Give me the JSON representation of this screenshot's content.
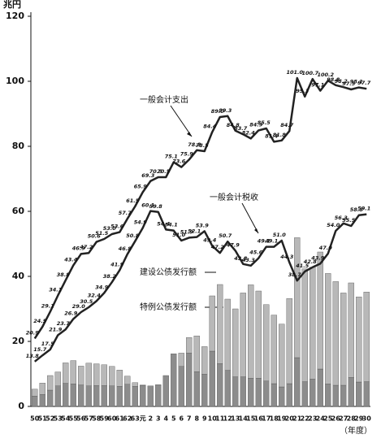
{
  "chart_data": {
    "type": "bar_line",
    "unit": "兆円",
    "x_label": "（年度）",
    "categories": [
      "50",
      "51",
      "52",
      "53",
      "54",
      "55",
      "56",
      "57",
      "58",
      "59",
      "60",
      "61",
      "62",
      "63",
      "元",
      "2",
      "3",
      "4",
      "5",
      "6",
      "7",
      "8",
      "9",
      "10",
      "11",
      "12",
      "13",
      "14",
      "15",
      "16",
      "17",
      "18",
      "19",
      "20",
      "21",
      "22",
      "23",
      "24",
      "25",
      "26",
      "27",
      "28",
      "29",
      "30"
    ],
    "series": [
      {
        "name": "一般会计支出",
        "kind": "line",
        "color": "#222222",
        "values": [
          20.9,
          24.5,
          29.1,
          34.1,
          38.8,
          43.4,
          46.9,
          47.2,
          50.6,
          51.5,
          53.0,
          53.6,
          57.7,
          61.5,
          65.9,
          69.3,
          70.5,
          70.5,
          75.1,
          73.6,
          75.9,
          78.8,
          78.5,
          84.4,
          89.0,
          89.3,
          84.8,
          83.7,
          82.4,
          84.9,
          85.5,
          81.4,
          81.8,
          84.7,
          101.0,
          95.3,
          100.7,
          97.1,
          100.2,
          98.8,
          98.2,
          97.5,
          98.1,
          97.7
        ],
        "value_labels": [
          "20.9",
          "24.5",
          "29.1",
          "34.1",
          "38.8",
          "43.4",
          "46.9",
          "47.2",
          "50.6",
          "51.5",
          "53.0",
          "53.6",
          "57.7",
          "61.5",
          "65.9",
          "69.3",
          "70.5",
          "70.5",
          "75.1",
          "73.6",
          "75.9",
          "78.8",
          "78.5",
          "84.4",
          "89.0",
          "89.3",
          "84.8",
          "83.7",
          "82.4",
          "84.9",
          "85.5",
          "81.4",
          "81.8",
          "84.7",
          "101.0",
          "95.3",
          "100.7",
          "97.1",
          "100.2",
          "98.8",
          "98.2",
          "97.5",
          "98.1",
          "97.7"
        ]
      },
      {
        "name": "一般会计税收",
        "kind": "line",
        "color": "#222222",
        "values": [
          13.8,
          15.7,
          17.5,
          21.9,
          23.7,
          26.9,
          29.0,
          30.5,
          32.4,
          34.9,
          38.2,
          41.9,
          46.8,
          50.8,
          54.9,
          60.1,
          59.8,
          54.4,
          54.1,
          51.0,
          51.9,
          52.1,
          53.9,
          49.4,
          47.2,
          50.7,
          47.9,
          43.8,
          43.3,
          45.6,
          49.1,
          49.1,
          51.0,
          44.3,
          38.7,
          41.5,
          42.8,
          43.9,
          47.0,
          54.0,
          56.3,
          55.5,
          58.8,
          59.1
        ],
        "value_labels": [
          "13.8",
          "15.7",
          "17.5",
          "21.9",
          "23.7",
          "26.9",
          "29.0",
          "30.5",
          "32.4",
          "34.9",
          "38.2",
          "41.9",
          "46.8",
          "50.8",
          "54.9",
          "60.1",
          "59.8",
          "54.4",
          "54.1",
          "51.0",
          "51.9",
          "52.1",
          "53.9",
          "49.4",
          "47.2",
          "50.7",
          "47.9",
          "43.8",
          "43.3",
          "45.6",
          "49.1",
          "49.1",
          "51.0",
          "44.3",
          "38.7",
          "41.5",
          "42.8",
          "43.9",
          "47.0",
          "54.0",
          "56.3",
          "55.5",
          "58.8",
          "59.1"
        ]
      },
      {
        "name": "建设公债发行额",
        "kind": "bar",
        "color": "#8c8c8c",
        "values": [
          3.2,
          3.7,
          5.0,
          6.3,
          7.1,
          6.9,
          6.6,
          6.3,
          6.4,
          6.4,
          6.3,
          6.2,
          6.8,
          6.2,
          6.4,
          6.3,
          6.7,
          9.5,
          16.2,
          12.3,
          16.4,
          10.7,
          9.9,
          17.0,
          13.2,
          11.1,
          9.1,
          9.1,
          8.7,
          8.7,
          7.8,
          7.0,
          6.0,
          7.0,
          15.0,
          7.6,
          8.4,
          11.5,
          6.9,
          6.5,
          6.5,
          8.9,
          7.5,
          7.6
        ]
      },
      {
        "name": "特例公债发行额",
        "kind": "bar",
        "color": "#b8b8b8",
        "values": [
          2.1,
          3.5,
          4.5,
          4.3,
          6.3,
          7.2,
          5.8,
          7.0,
          6.7,
          6.4,
          6.0,
          5.0,
          2.5,
          1.1,
          0.2,
          0,
          0,
          0,
          0,
          4.1,
          4.8,
          11.0,
          8.5,
          17.0,
          24.3,
          21.9,
          20.9,
          25.8,
          28.7,
          26.8,
          23.5,
          21.1,
          19.3,
          26.2,
          36.9,
          34.7,
          34.4,
          36.0,
          34.0,
          31.9,
          28.4,
          29.1,
          26.2,
          27.6
        ]
      }
    ],
    "ylim": [
      0,
      120
    ],
    "yticks": [
      0,
      20,
      40,
      60,
      80,
      100,
      120
    ]
  }
}
